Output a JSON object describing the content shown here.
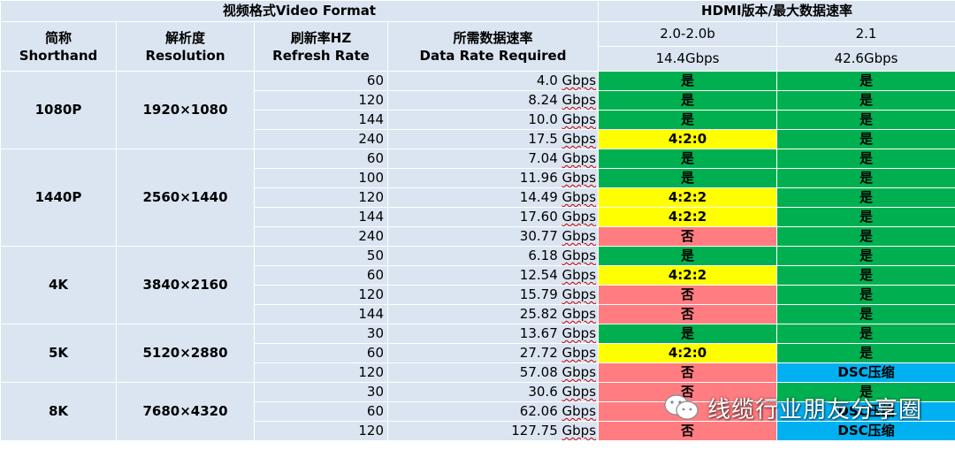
{
  "header": {
    "video_format": "视频格式Video Format",
    "hdmi": "HDMI版本/最大数据速率",
    "shorthand_cn": "简称",
    "shorthand_en": "Shorthand",
    "resolution_cn": "解析度",
    "resolution_en": "Resolution",
    "refresh_cn": "刷新率HZ",
    "refresh_en": "Refresh Rate",
    "datarate_cn": "所需数据速率",
    "datarate_en": "Data Rate Required",
    "v20": "2.0-2.0b",
    "v21": "2.1",
    "v20_rate": "14.4Gbps",
    "v21_rate": "42.6Gbps"
  },
  "unit": "Gbps",
  "colors": {
    "header_bg": "#dbe5f1",
    "yes": "#00b050",
    "partial": "#ffff00",
    "no": "#ff7c80",
    "dsc": "#00b0f0"
  },
  "groups": [
    {
      "shorthand": "1080P",
      "resolution": "1920×1080",
      "rows": [
        {
          "rate": "60",
          "data": "4.0",
          "h20": "是",
          "h20s": "ok",
          "h21": "是",
          "h21s": "ok"
        },
        {
          "rate": "120",
          "data": "8.24",
          "h20": "是",
          "h20s": "ok",
          "h21": "是",
          "h21s": "ok"
        },
        {
          "rate": "144",
          "data": "10.0",
          "h20": "是",
          "h20s": "ok",
          "h21": "是",
          "h21s": "ok"
        },
        {
          "rate": "240",
          "data": "17.5",
          "h20": "4:2:0",
          "h20s": "partial",
          "h21": "是",
          "h21s": "ok"
        }
      ]
    },
    {
      "shorthand": "1440P",
      "resolution": "2560×1440",
      "rows": [
        {
          "rate": "60",
          "data": "7.04",
          "h20": "是",
          "h20s": "ok",
          "h21": "是",
          "h21s": "ok"
        },
        {
          "rate": "100",
          "data": "11.96",
          "h20": "是",
          "h20s": "ok",
          "h21": "是",
          "h21s": "ok"
        },
        {
          "rate": "120",
          "data": "14.49",
          "h20": "4:2:2",
          "h20s": "partial",
          "h21": "是",
          "h21s": "ok"
        },
        {
          "rate": "144",
          "data": "17.60",
          "h20": "4:2:2",
          "h20s": "partial",
          "h21": "是",
          "h21s": "ok"
        },
        {
          "rate": "240",
          "data": "30.77",
          "h20": "否",
          "h20s": "no",
          "h21": "是",
          "h21s": "ok"
        }
      ]
    },
    {
      "shorthand": "4K",
      "resolution": "3840×2160",
      "rows": [
        {
          "rate": "50",
          "data": "6.18",
          "h20": "是",
          "h20s": "ok",
          "h21": "是",
          "h21s": "ok"
        },
        {
          "rate": "60",
          "data": "12.54",
          "h20": "4:2:2",
          "h20s": "partial",
          "h21": "是",
          "h21s": "ok"
        },
        {
          "rate": "120",
          "data": "15.79",
          "h20": "否",
          "h20s": "no",
          "h21": "是",
          "h21s": "ok"
        },
        {
          "rate": "144",
          "data": "25.82",
          "h20": "否",
          "h20s": "no",
          "h21": "是",
          "h21s": "ok"
        }
      ]
    },
    {
      "shorthand": "5K",
      "resolution": "5120×2880",
      "rows": [
        {
          "rate": "30",
          "data": "13.67",
          "h20": "是",
          "h20s": "ok",
          "h21": "是",
          "h21s": "ok"
        },
        {
          "rate": "60",
          "data": "27.72",
          "h20": "4:2:0",
          "h20s": "partial",
          "h21": "是",
          "h21s": "ok"
        },
        {
          "rate": "120",
          "data": "57.08",
          "h20": "否",
          "h20s": "no",
          "h21": "DSC压缩",
          "h21s": "dsc"
        }
      ]
    },
    {
      "shorthand": "8K",
      "resolution": "7680×4320",
      "rows": [
        {
          "rate": "30",
          "data": "30.6",
          "h20": "否",
          "h20s": "no",
          "h21": "是",
          "h21s": "ok"
        },
        {
          "rate": "60",
          "data": "62.06",
          "h20": "否",
          "h20s": "no",
          "h21": "DSC压缩",
          "h21s": "dsc"
        },
        {
          "rate": "120",
          "data": "127.75",
          "h20": "否",
          "h20s": "no",
          "h21": "DSC压缩",
          "h21s": "dsc"
        }
      ]
    }
  ],
  "watermark": {
    "text": "线缆行业朋友分享圈",
    "icon": "wechat-icon"
  }
}
